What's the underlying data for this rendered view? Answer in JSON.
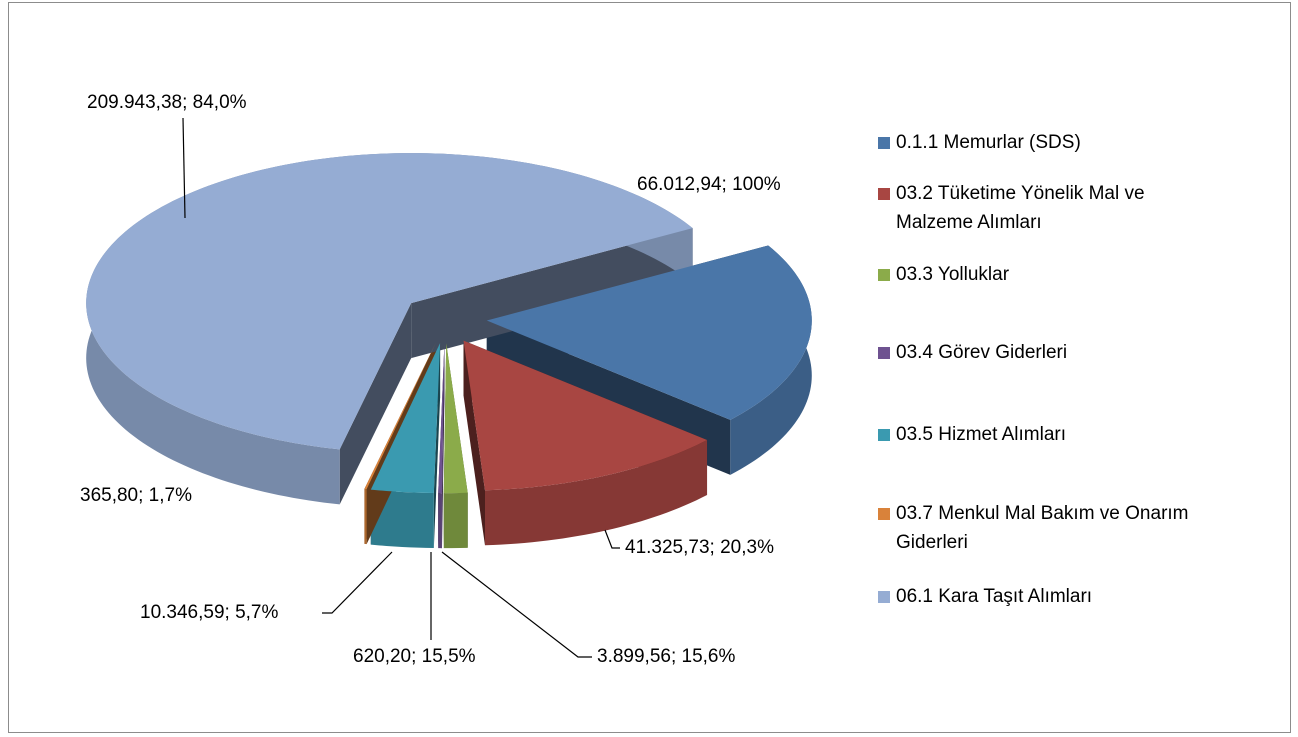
{
  "chart_data": {
    "type": "pie3d",
    "categories": [
      "0.1.1 Memurlar (SDS)",
      "03.2 Tüketime Yönelik Mal ve Malzeme Alımları",
      "03.3 Yolluklar",
      "03.4 Görev Giderleri",
      "03.5 Hizmet Alımları",
      "03.7 Menkul Mal Bakım ve Onarım Giderleri",
      "06.1 Kara Taşıt Alımları"
    ],
    "values": [
      66012.94,
      41325.73,
      3899.56,
      620.2,
      10346.59,
      365.8,
      209943.38
    ],
    "value_labels": [
      "66.012,94; 100%",
      "41.325,73; 20,3%",
      "3.899,56; 15,6%",
      "620,20; 15,5%",
      "10.346,59; 5,7%",
      "365,80; 1,7%",
      "209.943,38; 84,0%"
    ],
    "colors": [
      "#4a76a8",
      "#a84642",
      "#8bab4a",
      "#6e5290",
      "#3a9ab0",
      "#d9823a",
      "#95acd3"
    ],
    "legend": "right"
  }
}
